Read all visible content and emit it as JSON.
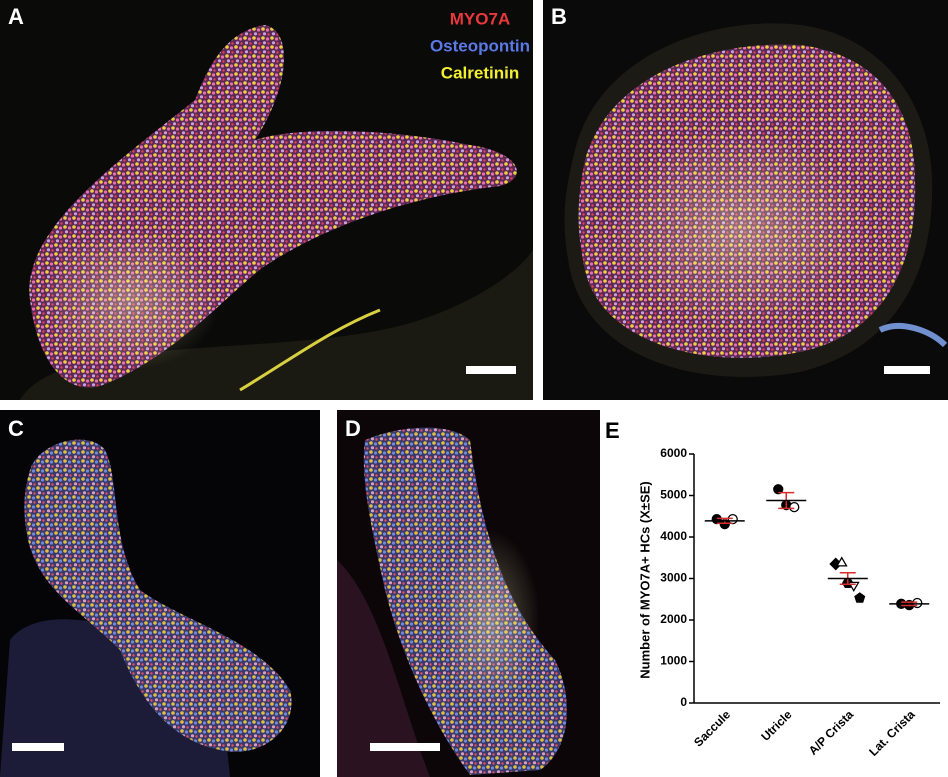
{
  "panels": {
    "a": {
      "label": "A"
    },
    "b": {
      "label": "B"
    },
    "c": {
      "label": "C"
    },
    "d": {
      "label": "D"
    }
  },
  "legend": [
    {
      "text": "MYO7A",
      "color": "#e8383d"
    },
    {
      "text": "Osteopontin",
      "color": "#5a78e6"
    },
    {
      "text": "Calretinin",
      "color": "#f2ee30"
    }
  ],
  "chart_data": {
    "type": "dot",
    "panel_label": "E",
    "y_label": "Number of MYO7A+ HCs (X±SE)",
    "ylim": [
      0,
      6000
    ],
    "yticks": [
      0,
      1000,
      2000,
      3000,
      4000,
      5000,
      6000
    ],
    "mean_color": "#000000",
    "se_color": "#d62c2c",
    "groups": [
      {
        "name": "Saccule",
        "values": [
          4430,
          4310,
          4430
        ],
        "markers": [
          "circle-filled",
          "circle-filled",
          "circle-open"
        ],
        "mean": 4390,
        "se": 60
      },
      {
        "name": "Utricle",
        "values": [
          5150,
          4770,
          4720
        ],
        "markers": [
          "circle-filled",
          "circle-filled",
          "circle-open"
        ],
        "mean": 4880,
        "se": 190
      },
      {
        "name": "A/P Crista",
        "values": [
          3350,
          3370,
          2890,
          2840,
          2530
        ],
        "markers": [
          "diamond-filled",
          "triangle-open",
          "hexagon-filled",
          "triangle-down-open",
          "pentagon-filled"
        ],
        "mean": 3000,
        "se": 140
      },
      {
        "name": "Lat. Crista",
        "values": [
          2390,
          2360,
          2410
        ],
        "markers": [
          "circle-filled",
          "circle-filled",
          "circle-open"
        ],
        "mean": 2390,
        "se": 40
      }
    ]
  }
}
